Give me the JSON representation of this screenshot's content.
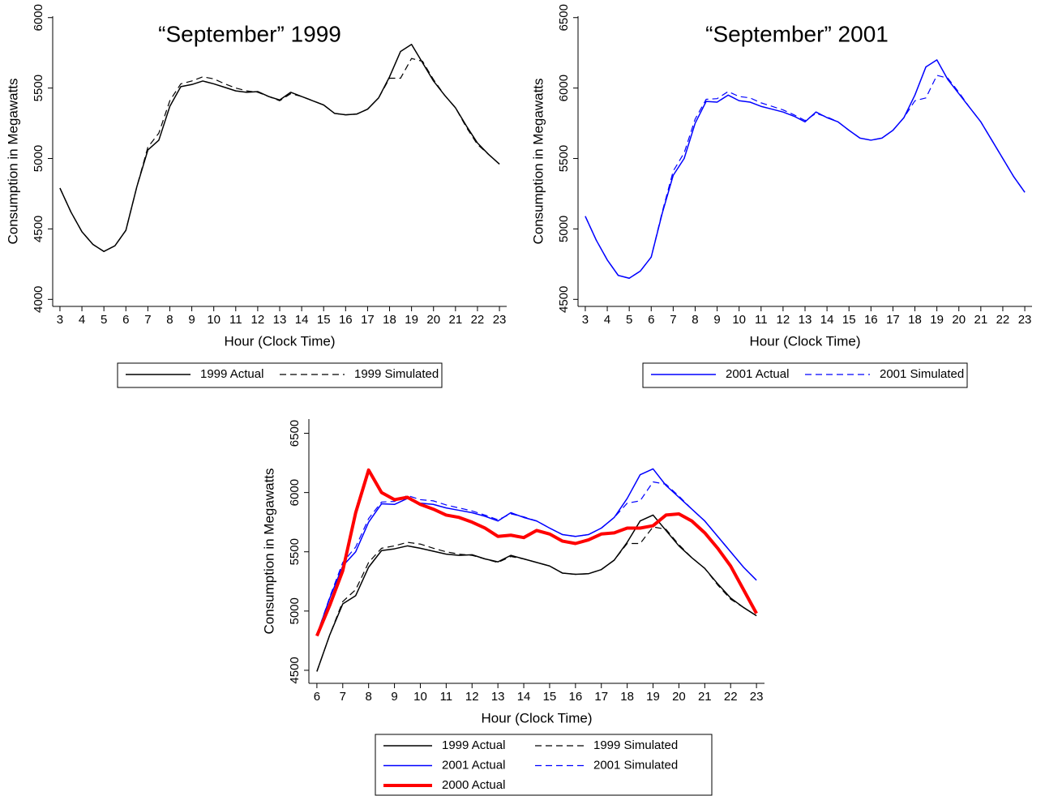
{
  "chart_data": [
    {
      "type": "line",
      "title": "“September” 1999",
      "xlabel": "Hour (Clock Time)",
      "ylabel": "Consumption in Megawatts",
      "x": [
        3,
        3.5,
        4,
        4.5,
        5,
        5.5,
        6,
        6.5,
        7,
        7.5,
        8,
        8.5,
        9,
        9.5,
        10,
        10.5,
        11,
        11.5,
        12,
        12.5,
        13,
        13.5,
        14,
        14.5,
        15,
        15.5,
        16,
        16.5,
        17,
        17.5,
        18,
        18.5,
        19,
        19.5,
        20,
        20.5,
        21,
        21.5,
        22,
        22.5,
        23
      ],
      "xlim": [
        2.67,
        23.33
      ],
      "xticks": [
        3,
        4,
        5,
        6,
        7,
        8,
        9,
        10,
        11,
        12,
        13,
        14,
        15,
        16,
        17,
        18,
        19,
        20,
        21,
        22,
        23
      ],
      "ylim": [
        3950,
        6010
      ],
      "yticks": [
        4000,
        4500,
        5000,
        5500,
        6000
      ],
      "series": [
        {
          "name": "1999 Actual",
          "color": "#000000",
          "line_style": "solid",
          "line_width": 1.5,
          "values": [
            4790,
            4620,
            4480,
            4390,
            4340,
            4380,
            4490,
            4800,
            5060,
            5130,
            5370,
            5510,
            5525,
            5550,
            5530,
            5505,
            5480,
            5470,
            5475,
            5440,
            5415,
            5470,
            5440,
            5410,
            5380,
            5320,
            5310,
            5315,
            5350,
            5430,
            5580,
            5760,
            5810,
            5680,
            5550,
            5450,
            5360,
            5230,
            5110,
            5030,
            4960
          ]
        },
        {
          "name": "1999 Simulated",
          "color": "#000000",
          "line_style": "dashed",
          "line_width": 1.2,
          "values": [
            4790,
            4620,
            4480,
            4390,
            4340,
            4380,
            4490,
            4800,
            5080,
            5180,
            5410,
            5530,
            5550,
            5580,
            5565,
            5530,
            5500,
            5480,
            5470,
            5440,
            5410,
            5460,
            5440,
            5410,
            5380,
            5320,
            5310,
            5315,
            5350,
            5430,
            5570,
            5570,
            5710,
            5690,
            5560,
            5450,
            5360,
            5220,
            5100,
            5030,
            4960
          ]
        }
      ]
    },
    {
      "type": "line",
      "title": "“September” 2001",
      "xlabel": "Hour (Clock Time)",
      "ylabel": "Consumption in Megawatts",
      "x": [
        3,
        3.5,
        4,
        4.5,
        5,
        5.5,
        6,
        6.5,
        7,
        7.5,
        8,
        8.5,
        9,
        9.5,
        10,
        10.5,
        11,
        11.5,
        12,
        12.5,
        13,
        13.5,
        14,
        14.5,
        15,
        15.5,
        16,
        16.5,
        17,
        17.5,
        18,
        18.5,
        19,
        19.5,
        20,
        20.5,
        21,
        21.5,
        22,
        22.5,
        23
      ],
      "xlim": [
        2.67,
        23.33
      ],
      "xticks": [
        3,
        4,
        5,
        6,
        7,
        8,
        9,
        10,
        11,
        12,
        13,
        14,
        15,
        16,
        17,
        18,
        19,
        20,
        21,
        22,
        23
      ],
      "ylim": [
        4450,
        6510
      ],
      "yticks": [
        4500,
        5000,
        5500,
        6000,
        6500
      ],
      "series": [
        {
          "name": "2001 Actual",
          "color": "#0000ff",
          "line_style": "solid",
          "line_width": 1.5,
          "values": [
            5090,
            4920,
            4780,
            4670,
            4650,
            4700,
            4800,
            5110,
            5380,
            5500,
            5750,
            5905,
            5900,
            5950,
            5910,
            5900,
            5870,
            5850,
            5830,
            5800,
            5760,
            5830,
            5790,
            5760,
            5700,
            5645,
            5630,
            5645,
            5700,
            5790,
            5950,
            6150,
            6200,
            6060,
            5960,
            5860,
            5760,
            5630,
            5500,
            5370,
            5260
          ]
        },
        {
          "name": "2001 Simulated",
          "color": "#0000ff",
          "line_style": "dashed",
          "line_width": 1.2,
          "values": [
            5090,
            4920,
            4780,
            4670,
            4650,
            4700,
            4800,
            5120,
            5410,
            5540,
            5780,
            5920,
            5925,
            5975,
            5940,
            5930,
            5895,
            5870,
            5845,
            5810,
            5770,
            5820,
            5795,
            5760,
            5700,
            5645,
            5630,
            5645,
            5700,
            5790,
            5910,
            5930,
            6090,
            6070,
            5970,
            5860,
            5760,
            5630,
            5500,
            5370,
            5260
          ]
        }
      ]
    },
    {
      "type": "line",
      "xlabel": "Hour (Clock Time)",
      "ylabel": "Consumption in Megawatts",
      "x": [
        6,
        6.5,
        7,
        7.5,
        8,
        8.5,
        9,
        9.5,
        10,
        10.5,
        11,
        11.5,
        12,
        12.5,
        13,
        13.5,
        14,
        14.5,
        15,
        15.5,
        16,
        16.5,
        17,
        17.5,
        18,
        18.5,
        19,
        19.5,
        20,
        20.5,
        21,
        21.5,
        22,
        22.5,
        23
      ],
      "xlim": [
        5.69,
        23.31
      ],
      "xticks": [
        6,
        7,
        8,
        9,
        10,
        11,
        12,
        13,
        14,
        15,
        16,
        17,
        18,
        19,
        20,
        21,
        22,
        23
      ],
      "ylim": [
        4390,
        6620
      ],
      "yticks": [
        4500,
        5000,
        5500,
        6000,
        6500
      ],
      "series": [
        {
          "name": "1999 Actual",
          "color": "#000000",
          "line_style": "solid",
          "line_width": 1.5,
          "values": [
            4490,
            4800,
            5060,
            5130,
            5370,
            5510,
            5525,
            5550,
            5530,
            5505,
            5480,
            5470,
            5475,
            5440,
            5415,
            5470,
            5440,
            5410,
            5380,
            5320,
            5310,
            5315,
            5350,
            5430,
            5580,
            5760,
            5810,
            5680,
            5550,
            5450,
            5360,
            5230,
            5110,
            5030,
            4960
          ]
        },
        {
          "name": "1999 Simulated",
          "color": "#000000",
          "line_style": "dashed",
          "line_width": 1.2,
          "values": [
            4490,
            4800,
            5080,
            5180,
            5410,
            5530,
            5550,
            5580,
            5565,
            5530,
            5500,
            5480,
            5470,
            5440,
            5410,
            5460,
            5440,
            5410,
            5380,
            5320,
            5310,
            5315,
            5350,
            5430,
            5570,
            5570,
            5710,
            5690,
            5560,
            5450,
            5360,
            5220,
            5100,
            5030,
            4960
          ]
        },
        {
          "name": "2001 Actual",
          "color": "#0000ff",
          "line_style": "solid",
          "line_width": 1.5,
          "values": [
            4800,
            5110,
            5380,
            5500,
            5750,
            5905,
            5900,
            5950,
            5910,
            5900,
            5870,
            5850,
            5830,
            5800,
            5760,
            5830,
            5790,
            5760,
            5700,
            5645,
            5630,
            5645,
            5700,
            5790,
            5950,
            6150,
            6200,
            6060,
            5960,
            5860,
            5760,
            5630,
            5500,
            5370,
            5260
          ]
        },
        {
          "name": "2001 Simulated",
          "color": "#0000ff",
          "line_style": "dashed",
          "line_width": 1.2,
          "values": [
            4800,
            5120,
            5410,
            5540,
            5780,
            5920,
            5925,
            5975,
            5940,
            5930,
            5895,
            5870,
            5845,
            5810,
            5770,
            5820,
            5795,
            5760,
            5700,
            5645,
            5630,
            5645,
            5700,
            5790,
            5910,
            5930,
            6090,
            6070,
            5970,
            5860,
            5760,
            5630,
            5500,
            5370,
            5260
          ]
        },
        {
          "name": "2000 Actual",
          "color": "#ff0000",
          "line_style": "solid",
          "line_width": 4,
          "values": [
            4790,
            5050,
            5340,
            5830,
            6190,
            6000,
            5940,
            5960,
            5900,
            5860,
            5810,
            5790,
            5750,
            5700,
            5630,
            5640,
            5620,
            5680,
            5650,
            5590,
            5570,
            5600,
            5650,
            5660,
            5700,
            5700,
            5720,
            5810,
            5820,
            5760,
            5660,
            5530,
            5380,
            5180,
            4980
          ]
        }
      ]
    }
  ]
}
